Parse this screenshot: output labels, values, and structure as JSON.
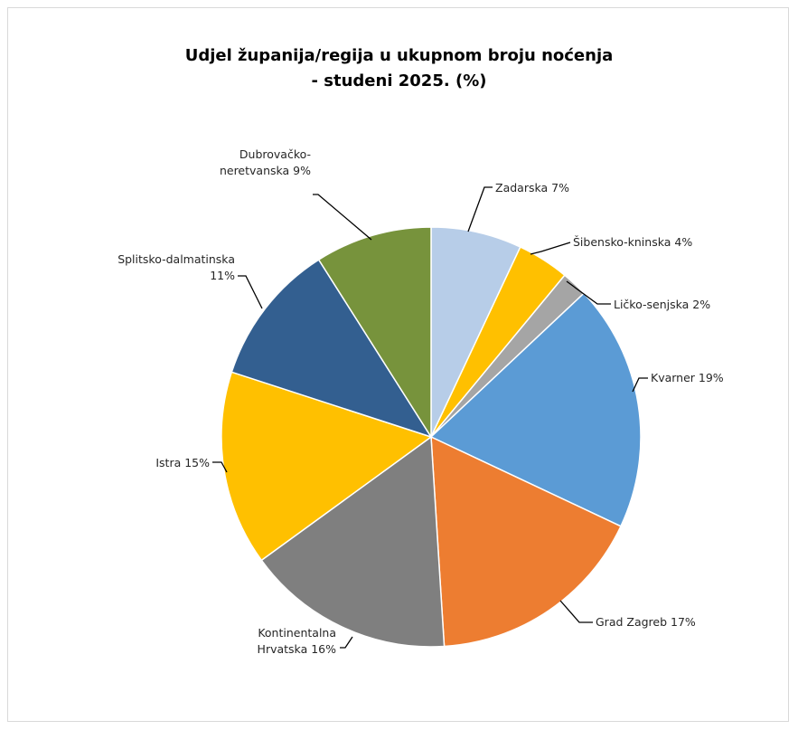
{
  "chart_data": {
    "type": "pie",
    "title": "Udjel županija/regija u ukupnom broju noćenja - studeni 2025. (%)",
    "title_lines": [
      "Udjel županija/regija u ukupnom broju noćenja",
      "- studeni 2025. (%)"
    ],
    "unit": "%",
    "legend": "none",
    "slices": [
      {
        "label_lines": [
          "Zadarska 7%"
        ],
        "name": "Zadarska",
        "value": 7,
        "color": "#b7cde8"
      },
      {
        "label_lines": [
          "Šibensko-kninska 4%"
        ],
        "name": "Šibensko-kninska",
        "value": 4,
        "color": "#ffc000"
      },
      {
        "label_lines": [
          "Ličko-senjska 2%"
        ],
        "name": "Ličko-senjska",
        "value": 2,
        "color": "#a5a5a5"
      },
      {
        "label_lines": [
          "Kvarner 19%"
        ],
        "name": "Kvarner",
        "value": 19,
        "color": "#5b9bd5"
      },
      {
        "label_lines": [
          "Grad Zagreb 17%"
        ],
        "name": "Grad Zagreb",
        "value": 17,
        "color": "#ed7d31"
      },
      {
        "label_lines": [
          "Kontinentalna",
          "Hrvatska 16%"
        ],
        "name": "Kontinentalna Hrvatska",
        "value": 16,
        "color": "#7f7f7f"
      },
      {
        "label_lines": [
          "Istra 15%"
        ],
        "name": "Istra",
        "value": 15,
        "color": "#ffc000"
      },
      {
        "label_lines": [
          "Splitsko-dalmatinska",
          "11%"
        ],
        "name": "Splitsko-dalmatinska",
        "value": 11,
        "color": "#335f90"
      },
      {
        "label_lines": [
          "Dubrovačko-",
          "neretvanska 9%"
        ],
        "name": "Dubrovačko-neretvanska",
        "value": 9,
        "color": "#77933c"
      }
    ]
  }
}
